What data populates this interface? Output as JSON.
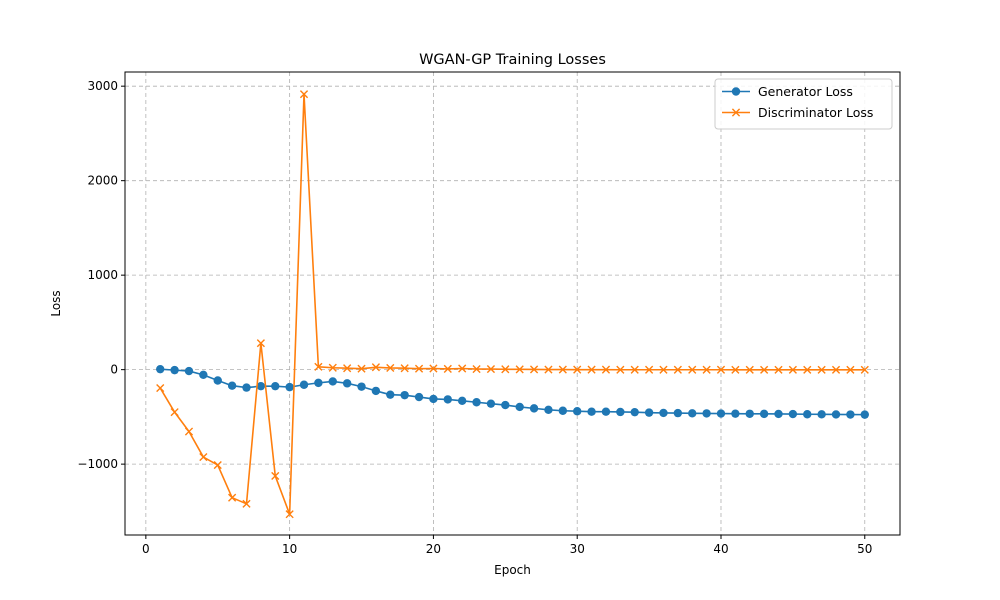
{
  "chart_data": {
    "type": "line",
    "title": "WGAN-GP Training Losses",
    "xlabel": "Epoch",
    "ylabel": "Loss",
    "xlim": [
      -1.45,
      52.45
    ],
    "ylim": [
      -1750,
      3150
    ],
    "xticks": [
      0,
      10,
      20,
      30,
      40,
      50
    ],
    "yticks": [
      -1000,
      0,
      1000,
      2000,
      3000
    ],
    "ytick_labels": [
      "−1000",
      "0",
      "1000",
      "2000",
      "3000"
    ],
    "grid": true,
    "legend_position": "top-right",
    "x": [
      1,
      2,
      3,
      4,
      5,
      6,
      7,
      8,
      9,
      10,
      11,
      12,
      13,
      14,
      15,
      16,
      17,
      18,
      19,
      20,
      21,
      22,
      23,
      24,
      25,
      26,
      27,
      28,
      29,
      30,
      31,
      32,
      33,
      34,
      35,
      36,
      37,
      38,
      39,
      40,
      41,
      42,
      43,
      44,
      45,
      46,
      47,
      48,
      49,
      50
    ],
    "series": [
      {
        "name": "Generator Loss",
        "color": "#1f77b4",
        "marker": "circle",
        "values": [
          5,
          -5,
          -15,
          -55,
          -115,
          -170,
          -190,
          -175,
          -175,
          -185,
          -160,
          -140,
          -125,
          -145,
          -180,
          -225,
          -265,
          -270,
          -290,
          -310,
          -315,
          -330,
          -345,
          -360,
          -375,
          -395,
          -410,
          -425,
          -435,
          -440,
          -445,
          -445,
          -448,
          -450,
          -455,
          -458,
          -460,
          -462,
          -463,
          -465,
          -466,
          -467,
          -468,
          -469,
          -470,
          -472,
          -473,
          -474,
          -475,
          -476
        ]
      },
      {
        "name": "Discriminator Loss",
        "color": "#ff7f0e",
        "marker": "x",
        "values": [
          -195,
          -450,
          -655,
          -925,
          -1010,
          -1355,
          -1420,
          280,
          -1125,
          -1530,
          2915,
          30,
          20,
          15,
          10,
          25,
          18,
          15,
          10,
          12,
          8,
          12,
          6,
          6,
          4,
          3,
          2,
          1,
          1,
          0,
          0,
          0,
          -1,
          -1,
          -1,
          -1,
          -1,
          -1,
          -1,
          -1,
          -2,
          -2,
          -2,
          -2,
          -2,
          -2,
          -2,
          -2,
          -2,
          -2
        ]
      }
    ]
  }
}
